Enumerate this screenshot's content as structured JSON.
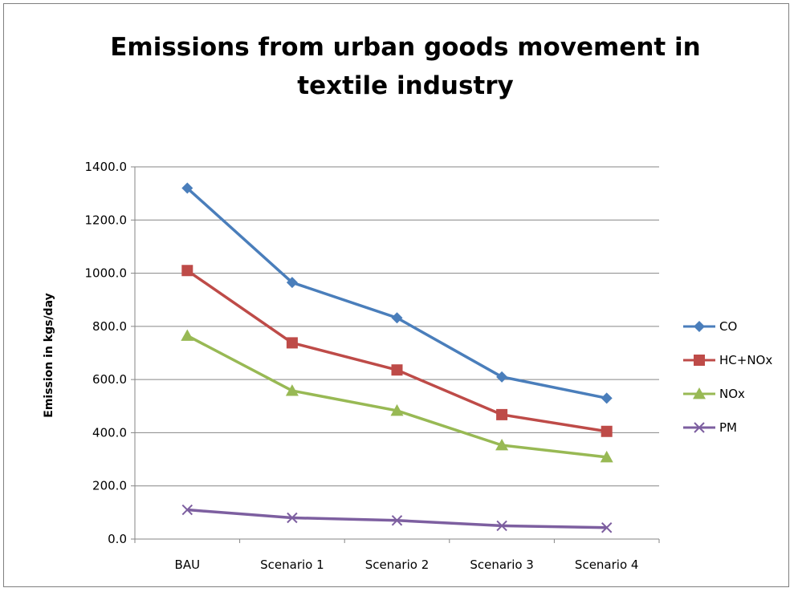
{
  "chart_data": {
    "type": "line",
    "title_lines": [
      "Emissions from urban goods movement in",
      "textile industry"
    ],
    "xlabel": "",
    "ylabel": "Emission in kgs/day",
    "categories": [
      "BAU",
      "Scenario 1",
      "Scenario 2",
      "Scenario 3",
      "Scenario 4"
    ],
    "ylim": [
      0,
      1400
    ],
    "yticks": [
      0,
      200,
      400,
      600,
      800,
      1000,
      1200,
      1400
    ],
    "ytick_labels": [
      "0.0",
      "200.0",
      "400.0",
      "600.0",
      "800.0",
      "1000.0",
      "1200.0",
      "1400.0"
    ],
    "grid": true,
    "legend_position": "right",
    "series": [
      {
        "name": "CO",
        "values": [
          1320,
          965,
          832,
          610,
          530
        ],
        "color": "#4a7ebb",
        "marker": "diamond"
      },
      {
        "name": "HC+NOx",
        "values": [
          1010,
          738,
          636,
          468,
          405
        ],
        "color": "#be4b48",
        "marker": "square"
      },
      {
        "name": "NOx",
        "values": [
          765,
          558,
          483,
          353,
          308
        ],
        "color": "#98b954",
        "marker": "triangle"
      },
      {
        "name": "PM",
        "values": [
          110,
          80,
          70,
          50,
          43
        ],
        "color": "#7d5fa0",
        "marker": "x"
      }
    ]
  }
}
